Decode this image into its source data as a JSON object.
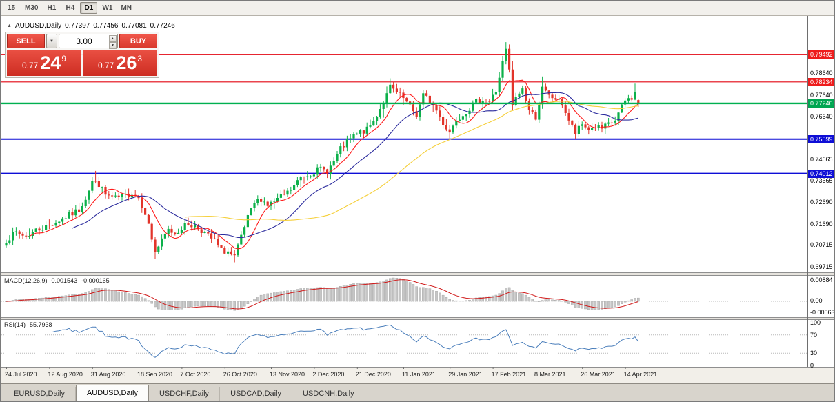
{
  "toolbar": {
    "timeframes": [
      {
        "label": "15",
        "active": false
      },
      {
        "label": "M30",
        "active": false
      },
      {
        "label": "H1",
        "active": false
      },
      {
        "label": "H4",
        "active": false
      },
      {
        "label": "D1",
        "active": true
      },
      {
        "label": "W1",
        "active": false
      },
      {
        "label": "MN",
        "active": false
      }
    ]
  },
  "icons": {
    "caret_down": "▼",
    "spin_up": "▲",
    "spin_down": "▼",
    "header_marker": "▲"
  },
  "chart_header": {
    "symbol": "AUDUSD,Daily",
    "open": "0.77397",
    "high": "0.77456",
    "low": "0.77081",
    "close": "0.77246"
  },
  "trade_panel": {
    "sell_label": "SELL",
    "buy_label": "BUY",
    "volume": "3.00",
    "sell_price_prefix": "0.77",
    "sell_price_big": "24",
    "sell_price_sup": "9",
    "buy_price_prefix": "0.77",
    "buy_price_big": "26",
    "buy_price_sup": "3"
  },
  "price_axis": {
    "ticks": [
      {
        "text": "0.78640",
        "price": 0.7864
      },
      {
        "text": "0.77640",
        "price": 0.7764
      },
      {
        "text": "0.76640",
        "price": 0.7664
      },
      {
        "text": "0.74665",
        "price": 0.74665
      },
      {
        "text": "0.73665",
        "price": 0.73665
      },
      {
        "text": "0.72690",
        "price": 0.7269
      },
      {
        "text": "0.71690",
        "price": 0.7169
      },
      {
        "text": "0.70715",
        "price": 0.70715
      },
      {
        "text": "0.69715",
        "price": 0.69715
      }
    ],
    "badges": [
      {
        "text": "0.79492",
        "price": 0.79492,
        "bg": "#ee1c1c"
      },
      {
        "text": "0.78234",
        "price": 0.78234,
        "bg": "#ee1c1c"
      },
      {
        "text": "0.77246",
        "price": 0.77246,
        "bg": "#00a651"
      },
      {
        "text": "0.75599",
        "price": 0.75599,
        "bg": "#0e0ed6"
      },
      {
        "text": "0.74012",
        "price": 0.74012,
        "bg": "#0e0ed6"
      }
    ]
  },
  "hlines": [
    {
      "price": 0.79492,
      "color": "#e30613",
      "w": 1.2
    },
    {
      "price": 0.78234,
      "color": "#e30613",
      "w": 1.2
    },
    {
      "price": 0.75599,
      "color": "#0e0ed6",
      "w": 2
    },
    {
      "price": 0.74012,
      "color": "#0e0ed6",
      "w": 2
    },
    {
      "price": 0.77246,
      "color": "#00b050",
      "w": 2.4,
      "top": true
    }
  ],
  "chart_data": {
    "type": "candlestick",
    "symbol": "AUDUSD",
    "timeframe": "Daily",
    "ohlc_last": {
      "open": 0.77397,
      "high": 0.77456,
      "low": 0.77081,
      "close": 0.77246
    },
    "bars_total": 192,
    "price_range": [
      0.6945,
      0.8125
    ],
    "anchors": [
      [
        0,
        0.7095
      ],
      [
        3,
        0.7128
      ],
      [
        6,
        0.7112
      ],
      [
        9,
        0.714
      ],
      [
        13,
        0.7162
      ],
      [
        16,
        0.7185
      ],
      [
        19,
        0.7208
      ],
      [
        22,
        0.7232
      ],
      [
        24,
        0.729
      ],
      [
        26,
        0.7365
      ],
      [
        28,
        0.7352
      ],
      [
        30,
        0.7302
      ],
      [
        33,
        0.7285
      ],
      [
        36,
        0.7298
      ],
      [
        38,
        0.7312
      ],
      [
        40,
        0.729
      ],
      [
        42,
        0.7222
      ],
      [
        44,
        0.71
      ],
      [
        45,
        0.7042
      ],
      [
        47,
        0.7088
      ],
      [
        49,
        0.714
      ],
      [
        51,
        0.7125
      ],
      [
        53,
        0.715
      ],
      [
        55,
        0.7168
      ],
      [
        57,
        0.7158
      ],
      [
        59,
        0.714
      ],
      [
        61,
        0.7112
      ],
      [
        63,
        0.7088
      ],
      [
        65,
        0.7046
      ],
      [
        67,
        0.704
      ],
      [
        69,
        0.7012
      ],
      [
        71,
        0.7108
      ],
      [
        73,
        0.7195
      ],
      [
        75,
        0.7262
      ],
      [
        77,
        0.7285
      ],
      [
        79,
        0.7256
      ],
      [
        81,
        0.727
      ],
      [
        83,
        0.7292
      ],
      [
        85,
        0.7312
      ],
      [
        87,
        0.7342
      ],
      [
        89,
        0.7385
      ],
      [
        91,
        0.7396
      ],
      [
        93,
        0.741
      ],
      [
        95,
        0.7422
      ],
      [
        97,
        0.7412
      ],
      [
        99,
        0.7455
      ],
      [
        101,
        0.7512
      ],
      [
        103,
        0.7546
      ],
      [
        105,
        0.7572
      ],
      [
        107,
        0.759
      ],
      [
        109,
        0.7602
      ],
      [
        111,
        0.7642
      ],
      [
        113,
        0.7702
      ],
      [
        115,
        0.7762
      ],
      [
        116,
        0.78
      ],
      [
        118,
        0.7772
      ],
      [
        120,
        0.7746
      ],
      [
        122,
        0.7706
      ],
      [
        124,
        0.7672
      ],
      [
        126,
        0.7762
      ],
      [
        128,
        0.7736
      ],
      [
        130,
        0.7692
      ],
      [
        132,
        0.7632
      ],
      [
        134,
        0.7592
      ],
      [
        136,
        0.7652
      ],
      [
        138,
        0.7676
      ],
      [
        140,
        0.7702
      ],
      [
        142,
        0.7732
      ],
      [
        144,
        0.7746
      ],
      [
        146,
        0.7732
      ],
      [
        148,
        0.7782
      ],
      [
        150,
        0.7912
      ],
      [
        151,
        0.797
      ],
      [
        152,
        0.7872
      ],
      [
        153,
        0.7716
      ],
      [
        155,
        0.7772
      ],
      [
        156,
        0.7792
      ],
      [
        158,
        0.7692
      ],
      [
        160,
        0.7662
      ],
      [
        162,
        0.7792
      ],
      [
        164,
        0.7756
      ],
      [
        166,
        0.7746
      ],
      [
        168,
        0.7722
      ],
      [
        170,
        0.7646
      ],
      [
        172,
        0.7586
      ],
      [
        174,
        0.7626
      ],
      [
        176,
        0.7606
      ],
      [
        178,
        0.7616
      ],
      [
        180,
        0.7606
      ],
      [
        182,
        0.7626
      ],
      [
        184,
        0.7646
      ],
      [
        186,
        0.7706
      ],
      [
        187,
        0.7736
      ],
      [
        189,
        0.7752
      ],
      [
        190,
        0.7776
      ],
      [
        191,
        0.77246
      ]
    ],
    "spikes": [
      {
        "bar": 27,
        "high": 0.7413
      },
      {
        "bar": 45,
        "low": 0.7006
      },
      {
        "bar": 69,
        "low": 0.6991
      },
      {
        "bar": 116,
        "high": 0.782
      },
      {
        "bar": 134,
        "low": 0.7564
      },
      {
        "bar": 151,
        "high": 0.8007
      },
      {
        "bar": 153,
        "low": 0.7692
      },
      {
        "bar": 162,
        "high": 0.7849
      },
      {
        "bar": 172,
        "low": 0.7562
      },
      {
        "bar": 190,
        "high": 0.7816
      }
    ],
    "up_color": "#0cb04a",
    "down_color": "#e2342a",
    "ma_lines": [
      {
        "period": 8,
        "color": "#ff1a1a"
      },
      {
        "period": 21,
        "color": "#2d2d9e"
      },
      {
        "period": 55,
        "color": "#f5cf3a"
      }
    ],
    "seed": 7,
    "noise": 0.003,
    "wick": 0.0022
  },
  "macd_panel": {
    "name": "MACD(12,26,9)",
    "value_main": "0.001543",
    "value_signal": "-0.000165",
    "axis_top": "0.00884",
    "axis_zero": "0.00",
    "axis_bottom": "-0.00563",
    "bar_color": "#c6c6c6",
    "signal_color": "#d01818"
  },
  "rsi_panel": {
    "name": "RSI(14)",
    "value": "55.7938",
    "axis": [
      "100",
      "70",
      "30",
      "0"
    ],
    "levels": [
      70,
      30
    ],
    "line_color": "#4a7ebb"
  },
  "date_axis": {
    "labels": [
      {
        "text": "24 Jul 2020",
        "bar": 0
      },
      {
        "text": "12 Aug 2020",
        "bar": 13
      },
      {
        "text": "31 Aug 2020",
        "bar": 26
      },
      {
        "text": "18 Sep 2020",
        "bar": 40
      },
      {
        "text": "7 Oct 2020",
        "bar": 53
      },
      {
        "text": "26 Oct 2020",
        "bar": 66
      },
      {
        "text": "13 Nov 2020",
        "bar": 80
      },
      {
        "text": "2 Dec 2020",
        "bar": 93
      },
      {
        "text": "21 Dec 2020",
        "bar": 106
      },
      {
        "text": "11 Jan 2021",
        "bar": 120
      },
      {
        "text": "29 Jan 2021",
        "bar": 134
      },
      {
        "text": "17 Feb 2021",
        "bar": 147
      },
      {
        "text": "8 Mar 2021",
        "bar": 160
      },
      {
        "text": "26 Mar 2021",
        "bar": 174
      },
      {
        "text": "14 Apr 2021",
        "bar": 187
      }
    ]
  },
  "tabs": [
    {
      "label": "EURUSD,Daily",
      "active": false
    },
    {
      "label": "AUDUSD,Daily",
      "active": true
    },
    {
      "label": "USDCHF,Daily",
      "active": false
    },
    {
      "label": "USDCAD,Daily",
      "active": false
    },
    {
      "label": "USDCNH,Daily",
      "active": false
    }
  ]
}
